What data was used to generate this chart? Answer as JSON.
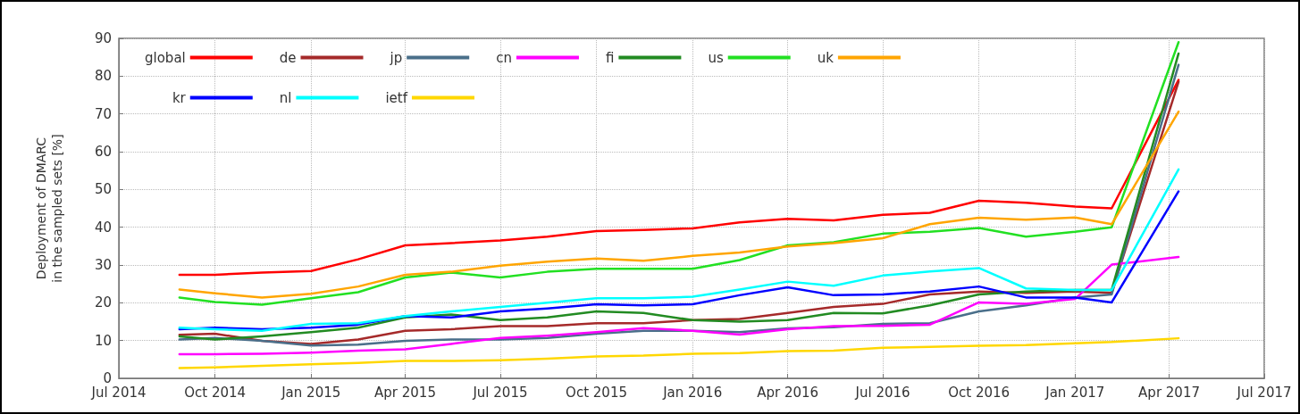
{
  "chart_data": {
    "type": "line",
    "ylabel": "Deployment of DMARC\nin the sampled sets [%]",
    "x": [
      "2014-08-28",
      "2014-10-01",
      "2014-11-15",
      "2015-01-01",
      "2015-02-15",
      "2015-04-01",
      "2015-05-15",
      "2015-07-01",
      "2015-08-15",
      "2015-10-01",
      "2015-11-15",
      "2016-01-01",
      "2016-02-15",
      "2016-04-01",
      "2016-05-15",
      "2016-07-01",
      "2016-08-15",
      "2016-10-01",
      "2016-11-15",
      "2017-01-01",
      "2017-02-05",
      "2017-04-10"
    ],
    "xlim": [
      "2014-07",
      "2017-07"
    ],
    "xticks": [
      {
        "value": "2014-07",
        "label": "Jul 2014"
      },
      {
        "value": "2014-10",
        "label": "Oct 2014"
      },
      {
        "value": "2015-01",
        "label": "Jan 2015"
      },
      {
        "value": "2015-04",
        "label": "Apr 2015"
      },
      {
        "value": "2015-07",
        "label": "Jul 2015"
      },
      {
        "value": "2015-10",
        "label": "Oct 2015"
      },
      {
        "value": "2016-01",
        "label": "Jan 2016"
      },
      {
        "value": "2016-04",
        "label": "Apr 2016"
      },
      {
        "value": "2016-07",
        "label": "Jul 2016"
      },
      {
        "value": "2016-10",
        "label": "Oct 2016"
      },
      {
        "value": "2017-01",
        "label": "Jan 2017"
      },
      {
        "value": "2017-04",
        "label": "Apr 2017"
      },
      {
        "value": "2017-07",
        "label": "Jul 2017"
      }
    ],
    "ylim": [
      0,
      90
    ],
    "yticks": [
      0,
      10,
      20,
      30,
      40,
      50,
      60,
      70,
      80,
      90
    ],
    "grid": true,
    "legend": "top left",
    "marker": "none",
    "line_style": "solid",
    "series": [
      {
        "name": "global",
        "color": "#ff0000",
        "values": [
          27.4,
          27.4,
          28.0,
          28.4,
          31.5,
          35.2,
          35.8,
          36.5,
          37.5,
          39.0,
          39.3,
          39.7,
          41.3,
          42.2,
          41.8,
          43.3,
          43.8,
          47.0,
          46.5,
          45.5,
          45.0,
          79
        ]
      },
      {
        "name": "de",
        "color": "#a52a2a",
        "values": [
          11.5,
          11.8,
          9.9,
          9.1,
          10.3,
          12.6,
          13.0,
          13.8,
          13.8,
          14.6,
          14.6,
          15.4,
          15.7,
          17.3,
          18.9,
          19.7,
          22.2,
          23.0,
          22.6,
          23.0,
          22.6,
          78.5
        ]
      },
      {
        "name": "jp",
        "color": "#4a6f8a",
        "values": [
          10.3,
          10.7,
          9.9,
          8.7,
          8.9,
          9.9,
          10.3,
          10.3,
          10.7,
          11.8,
          12.6,
          12.6,
          12.2,
          13.2,
          13.5,
          14.4,
          14.6,
          17.7,
          19.3,
          21.4,
          22.2,
          83
        ]
      },
      {
        "name": "cn",
        "color": "#ff00ff",
        "values": [
          6.4,
          6.4,
          6.5,
          6.8,
          7.3,
          7.7,
          9.1,
          10.7,
          11.3,
          12.2,
          13.3,
          12.6,
          11.6,
          13.0,
          13.8,
          13.9,
          14.2,
          20.1,
          19.7,
          21.0,
          30.1,
          32.1
        ]
      },
      {
        "name": "fi",
        "color": "#228b22",
        "values": [
          11.1,
          10.3,
          11.1,
          12.2,
          13.4,
          16.1,
          16.9,
          15.4,
          16.1,
          17.7,
          17.3,
          15.4,
          15.0,
          15.4,
          17.3,
          17.2,
          19.3,
          22.2,
          23.0,
          23.4,
          23.4,
          86
        ]
      },
      {
        "name": "us",
        "color": "#22e022",
        "values": [
          21.4,
          20.2,
          19.5,
          21.2,
          22.8,
          26.7,
          28.0,
          26.7,
          28.2,
          29.0,
          29.0,
          29.0,
          31.3,
          35.2,
          36.0,
          38.3,
          38.8,
          39.8,
          37.5,
          38.8,
          40.0,
          89
        ]
      },
      {
        "name": "uk",
        "color": "#ffa500",
        "values": [
          23.5,
          22.5,
          21.4,
          22.4,
          24.3,
          27.4,
          28.2,
          29.8,
          30.9,
          31.7,
          31.1,
          32.4,
          33.3,
          34.9,
          35.8,
          37.1,
          40.8,
          42.5,
          42.0,
          42.6,
          40.8,
          70.6
        ]
      },
      {
        "name": "kr",
        "color": "#0000ff",
        "values": [
          13.0,
          13.4,
          13.0,
          13.4,
          14.2,
          16.5,
          16.1,
          17.7,
          18.5,
          19.6,
          19.3,
          19.6,
          22.0,
          24.1,
          22.0,
          22.2,
          23.0,
          24.3,
          21.4,
          21.4,
          20.1,
          49.5
        ]
      },
      {
        "name": "nl",
        "color": "#00ffff",
        "values": [
          13.4,
          13.0,
          12.6,
          14.4,
          14.6,
          16.5,
          17.7,
          18.9,
          20.0,
          21.2,
          21.2,
          21.6,
          23.5,
          25.6,
          24.5,
          27.2,
          28.3,
          29.2,
          23.8,
          23.4,
          23.4,
          55.3
        ]
      },
      {
        "name": "ietf",
        "color": "#ffd700",
        "values": [
          2.7,
          2.9,
          3.3,
          3.7,
          4.1,
          4.6,
          4.6,
          4.8,
          5.2,
          5.8,
          6.0,
          6.5,
          6.7,
          7.2,
          7.3,
          8.1,
          8.3,
          8.6,
          8.8,
          9.3,
          9.6,
          10.6
        ]
      }
    ]
  }
}
